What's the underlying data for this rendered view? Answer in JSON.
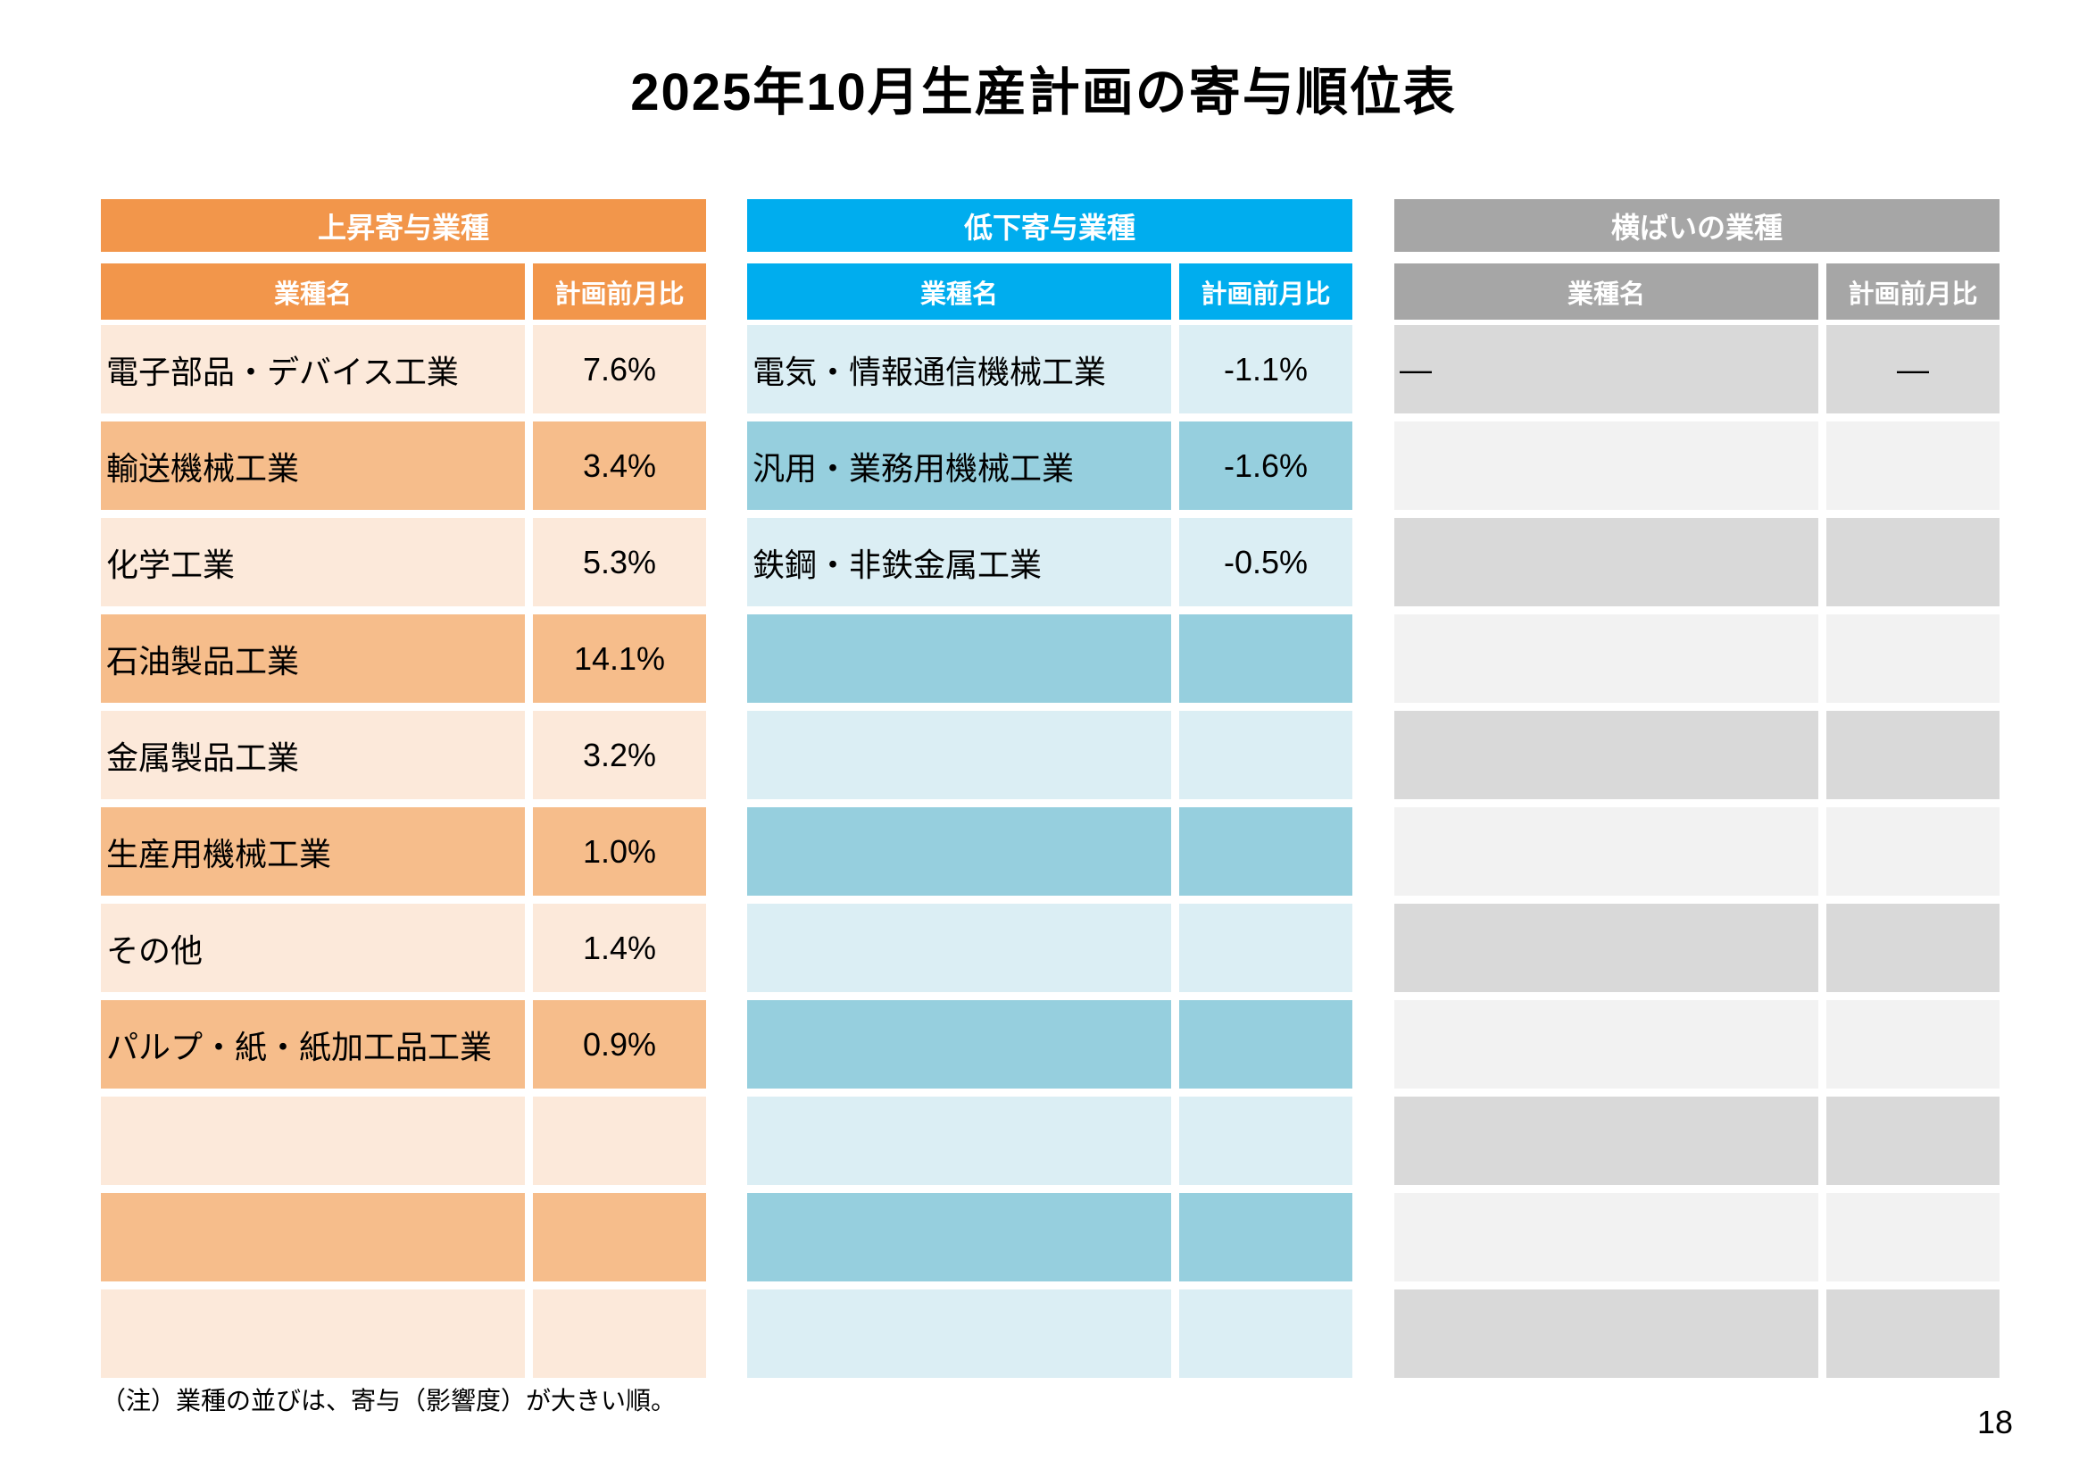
{
  "page": {
    "title": "2025年10月生産計画の寄与順位表",
    "note": "（注）業種の並びは、寄与（影響度）が大きい順。",
    "page_number": "18"
  },
  "columns": {
    "name": "業種名",
    "value": "計画前月比"
  },
  "tables": [
    {
      "title": "上昇寄与業種",
      "alt_first": "light",
      "colors": {
        "header": "#F2964B",
        "row_light": "#FCE9DA",
        "row_dark": "#F6BD8B"
      },
      "rows": [
        {
          "name": "電子部品・デバイス工業",
          "value": "7.6%"
        },
        {
          "name": "輸送機械工業",
          "value": "3.4%"
        },
        {
          "name": "化学工業",
          "value": "5.3%"
        },
        {
          "name": "石油製品工業",
          "value": "14.1%"
        },
        {
          "name": "金属製品工業",
          "value": "3.2%"
        },
        {
          "name": "生産用機械工業",
          "value": "1.0%"
        },
        {
          "name": "その他",
          "value": "1.4%"
        },
        {
          "name": "パルプ・紙・紙加工品工業",
          "value": "0.9%"
        },
        {
          "name": "",
          "value": ""
        },
        {
          "name": "",
          "value": ""
        },
        {
          "name": "",
          "value": ""
        }
      ]
    },
    {
      "title": "低下寄与業種",
      "alt_first": "light",
      "colors": {
        "header": "#00ADEE",
        "row_light": "#DBEEF4",
        "row_dark": "#96CFDE"
      },
      "rows": [
        {
          "name": "電気・情報通信機械工業",
          "value": "-1.1%"
        },
        {
          "name": "汎用・業務用機械工業",
          "value": "-1.6%"
        },
        {
          "name": "鉄鋼・非鉄金属工業",
          "value": "-0.5%"
        },
        {
          "name": "",
          "value": ""
        },
        {
          "name": "",
          "value": ""
        },
        {
          "name": "",
          "value": ""
        },
        {
          "name": "",
          "value": ""
        },
        {
          "name": "",
          "value": ""
        },
        {
          "name": "",
          "value": ""
        },
        {
          "name": "",
          "value": ""
        },
        {
          "name": "",
          "value": ""
        }
      ]
    },
    {
      "title": "横ばいの業種",
      "alt_first": "dark",
      "colors": {
        "header": "#A6A6A6",
        "row_light": "#F2F2F2",
        "row_dark": "#D9D9D9"
      },
      "rows": [
        {
          "name": "―",
          "value": "―"
        },
        {
          "name": "",
          "value": ""
        },
        {
          "name": "",
          "value": ""
        },
        {
          "name": "",
          "value": ""
        },
        {
          "name": "",
          "value": ""
        },
        {
          "name": "",
          "value": ""
        },
        {
          "name": "",
          "value": ""
        },
        {
          "name": "",
          "value": ""
        },
        {
          "name": "",
          "value": ""
        },
        {
          "name": "",
          "value": ""
        },
        {
          "name": "",
          "value": ""
        }
      ]
    }
  ]
}
